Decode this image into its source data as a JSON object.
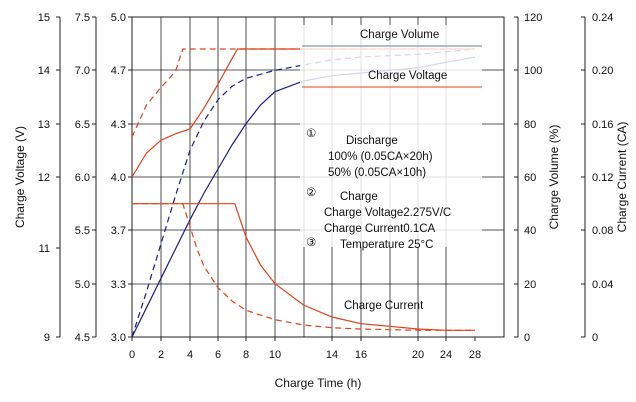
{
  "chart_data": {
    "type": "line",
    "xlabel": "Charge Time (h)",
    "x_ticks": [
      "0",
      "2",
      "4",
      "6",
      "8",
      "10",
      "14",
      "16",
      "20",
      "24",
      "28"
    ],
    "axes": {
      "outer_left": {
        "label": "Charge Voltage (V)",
        "ticks": [
          "15",
          "14",
          "13",
          "12",
          "11",
          "9"
        ]
      },
      "inner_left": {
        "label": "Charge Voltage (V)",
        "ticks": [
          "7.5",
          "7.0",
          "6.5",
          "6.0",
          "5.5",
          "5.0",
          "4.5"
        ]
      },
      "plot_left": {
        "ticks": [
          "5.0",
          "4.7",
          "4.3",
          "4.0",
          "3.7",
          "3.3",
          "3.0"
        ]
      },
      "right1": {
        "label": "Charge Volume (%)",
        "ticks": [
          "120",
          "100",
          "80",
          "60",
          "40",
          "20",
          "0"
        ]
      },
      "right2": {
        "label": "Charge Current (CA)",
        "ticks": [
          "0.24",
          "0.20",
          "0.16",
          "0.12",
          "0.08",
          "0.04",
          "0"
        ]
      }
    },
    "annotations": {
      "volume": "Charge Volume",
      "voltage": "Charge Voltage",
      "current": "Charge Current",
      "n1": "①",
      "n2": "②",
      "n3": "③",
      "discharge": "Discharge",
      "d1": "100% (0.05CA×20h)",
      "d2": "50% (0.05CA×10h)",
      "charge": "Charge",
      "c1": "Charge Voltage2.275V/C",
      "c2": "Charge Current0.1CA",
      "c3": "Temperature 25°C"
    },
    "series": [
      {
        "key": "volume_100",
        "color": "#1a1f8c",
        "dashed": false,
        "x": [
          0,
          1,
          2,
          3,
          4,
          5,
          6,
          7,
          8,
          9,
          10,
          12,
          14,
          16,
          18,
          20,
          22,
          24,
          26,
          28
        ],
        "y": [
          0,
          11,
          22,
          33,
          44,
          54,
          63,
          72,
          80,
          87,
          92,
          96,
          98,
          99,
          100,
          101,
          102,
          103,
          104,
          105
        ]
      },
      {
        "key": "volume_50",
        "color": "#1a1f8c",
        "dashed": true,
        "x": [
          0,
          1,
          2,
          3,
          4,
          5,
          6,
          7,
          8,
          10,
          12,
          14,
          16,
          20,
          24,
          28
        ],
        "y": [
          0,
          17,
          35,
          53,
          70,
          81,
          89,
          94,
          97,
          100,
          102,
          104,
          105,
          106,
          107,
          108
        ]
      },
      {
        "key": "voltage_100",
        "color": "#e0431a",
        "dashed": false,
        "x": [
          0,
          1,
          2,
          3,
          4,
          5,
          6,
          7,
          7.4,
          8,
          10,
          14,
          16,
          20,
          24,
          28
        ],
        "y": [
          4.0,
          4.15,
          4.23,
          4.27,
          4.3,
          4.43,
          4.58,
          4.74,
          4.8,
          4.8,
          4.8,
          4.8,
          4.8,
          4.8,
          4.8,
          4.8
        ]
      },
      {
        "key": "voltage_50",
        "color": "#e0431a",
        "dashed": true,
        "x": [
          0,
          1,
          2,
          3,
          3.5,
          4,
          8,
          14,
          20,
          28
        ],
        "y": [
          4.25,
          4.45,
          4.56,
          4.66,
          4.8,
          4.8,
          4.8,
          4.8,
          4.8,
          4.8
        ]
      },
      {
        "key": "current_100",
        "color": "#e0431a",
        "dashed": false,
        "x": [
          0,
          7.2,
          8,
          9,
          10,
          12,
          14,
          16,
          18,
          20,
          24,
          28
        ],
        "y": [
          0.1,
          0.1,
          0.075,
          0.054,
          0.04,
          0.024,
          0.015,
          0.01,
          0.008,
          0.006,
          0.005,
          0.005
        ]
      },
      {
        "key": "current_50",
        "color": "#e0431a",
        "dashed": true,
        "x": [
          0,
          3.5,
          4,
          4.5,
          5,
          6,
          7,
          8,
          10,
          12,
          14,
          16,
          20,
          24,
          28
        ],
        "y": [
          0.1,
          0.1,
          0.083,
          0.066,
          0.053,
          0.037,
          0.027,
          0.02,
          0.013,
          0.009,
          0.007,
          0.006,
          0.005,
          0.005,
          0.005
        ]
      }
    ],
    "xlim": [
      0,
      28
    ],
    "volume_ylim": [
      0,
      120
    ],
    "voltage_ylim": [
      3.0,
      5.0
    ],
    "current_ylim": [
      0,
      0.24
    ],
    "grid": true
  }
}
